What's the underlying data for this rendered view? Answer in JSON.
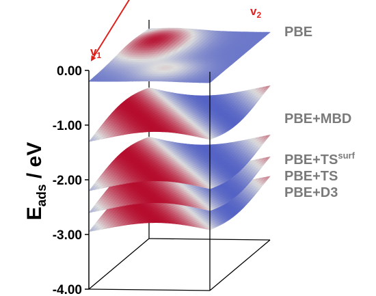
{
  "chart_data": {
    "type": "surface3d",
    "ylabel_main": "E",
    "ylabel_sub": "ads",
    "ylabel_unit": " / eV",
    "yticks": [
      "0.00",
      "-1.00",
      "-2.00",
      "-3.00",
      "-4.00"
    ],
    "ylim": [
      -4.0,
      0.0
    ],
    "lattice_vectors": [
      {
        "name": "v",
        "sub": "1"
      },
      {
        "name": "v",
        "sub": "2"
      }
    ],
    "lattice_vector_color": "#e0201b",
    "colormap": [
      "#3b4cc0",
      "#dddddd",
      "#b40426"
    ],
    "series": [
      {
        "name": "PBE",
        "name_sup": "",
        "base": -0.15,
        "amp": 0.25,
        "mode": "bump"
      },
      {
        "name": "PBE+MBD",
        "name_sup": "",
        "base": -1.25,
        "amp": 0.5,
        "mode": "wave"
      },
      {
        "name": "PBE+TS",
        "name_sup": "surf",
        "base": -2.15,
        "amp": 0.5,
        "mode": "wave"
      },
      {
        "name": "PBE+TS",
        "name_sup": "",
        "base": -2.55,
        "amp": 0.5,
        "mode": "wave"
      },
      {
        "name": "PBE+D3",
        "name_sup": "",
        "base": -2.9,
        "amp": 0.45,
        "mode": "wave"
      }
    ]
  }
}
